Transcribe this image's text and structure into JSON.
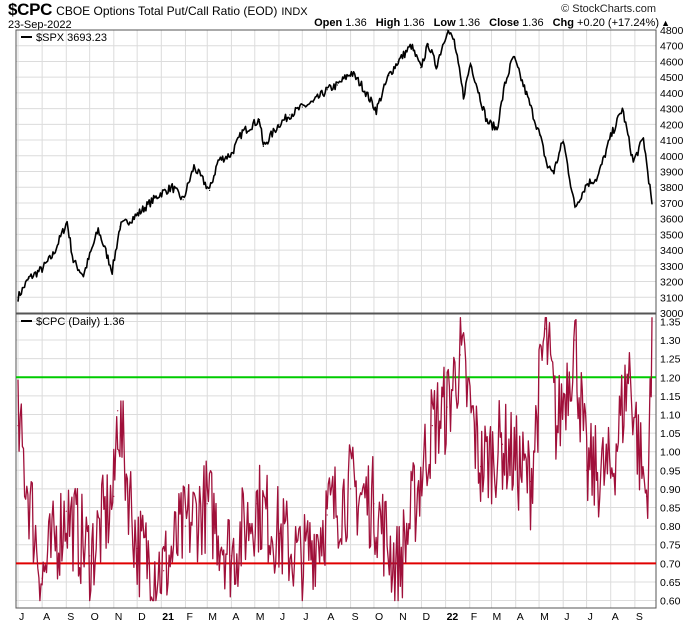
{
  "header": {
    "symbol": "$CPC",
    "name": "CBOE Options Total Put/Call Ratio (EOD)",
    "exchange": "INDX",
    "date": "23-Sep-2022",
    "brand": "© StockCharts.com",
    "open_label": "Open",
    "open": "1.36",
    "high_label": "High",
    "high": "1.36",
    "low_label": "Low",
    "low": "1.36",
    "close_label": "Close",
    "close": "1.36",
    "chg_label": "Chg",
    "chg": "+0.20 (+17.24%)",
    "chg_icon": "triangle-up-icon"
  },
  "chart_data": [
    {
      "type": "line",
      "legend": "$SPX 3693.23",
      "color": "#000000",
      "ylim": [
        3000,
        4800
      ],
      "yticks": [
        3000,
        3100,
        3200,
        3300,
        3400,
        3500,
        3600,
        3700,
        3800,
        3900,
        4000,
        4100,
        4200,
        4300,
        4400,
        4500,
        4600,
        4700,
        4800
      ],
      "x_range": [
        "2020-07-01",
        "2022-09-23"
      ],
      "x": [
        "2020-07-01",
        "2020-07-15",
        "2020-08-01",
        "2020-08-15",
        "2020-09-02",
        "2020-09-10",
        "2020-09-23",
        "2020-10-12",
        "2020-10-30",
        "2020-11-09",
        "2020-11-30",
        "2020-12-15",
        "2020-12-31",
        "2021-01-15",
        "2021-01-29",
        "2021-02-12",
        "2021-03-04",
        "2021-03-15",
        "2021-04-01",
        "2021-04-15",
        "2021-05-07",
        "2021-05-12",
        "2021-06-01",
        "2021-06-15",
        "2021-07-01",
        "2021-07-15",
        "2021-08-02",
        "2021-08-15",
        "2021-09-02",
        "2021-09-15",
        "2021-10-04",
        "2021-10-20",
        "2021-11-01",
        "2021-11-18",
        "2021-11-30",
        "2021-12-10",
        "2021-12-20",
        "2022-01-03",
        "2022-01-12",
        "2022-01-24",
        "2022-02-02",
        "2022-02-23",
        "2022-03-08",
        "2022-03-18",
        "2022-03-29",
        "2022-04-15",
        "2022-05-02",
        "2022-05-12",
        "2022-05-20",
        "2022-06-01",
        "2022-06-16",
        "2022-07-01",
        "2022-07-15",
        "2022-08-01",
        "2022-08-16",
        "2022-08-30",
        "2022-09-12",
        "2022-09-23"
      ],
      "values": [
        3100,
        3220,
        3280,
        3370,
        3580,
        3330,
        3240,
        3530,
        3270,
        3550,
        3620,
        3690,
        3760,
        3800,
        3720,
        3930,
        3780,
        3970,
        4010,
        4150,
        4230,
        4060,
        4200,
        4260,
        4310,
        4340,
        4420,
        4450,
        4530,
        4450,
        4290,
        4510,
        4600,
        4700,
        4560,
        4710,
        4570,
        4800,
        4730,
        4380,
        4590,
        4220,
        4170,
        4450,
        4630,
        4390,
        4130,
        3930,
        3900,
        4100,
        3670,
        3820,
        3860,
        4120,
        4300,
        3960,
        4110,
        3693
      ]
    },
    {
      "type": "line",
      "legend": "$CPC (Daily) 1.36",
      "color": "#a0103a",
      "ylim": [
        0.58,
        1.37
      ],
      "yticks": [
        0.6,
        0.65,
        0.7,
        0.75,
        0.8,
        0.85,
        0.9,
        0.95,
        1.0,
        1.05,
        1.1,
        1.15,
        1.2,
        1.25,
        1.3,
        1.35
      ],
      "x_range": [
        "2020-07-01",
        "2022-09-23"
      ],
      "reference_lines": [
        {
          "value": 1.2,
          "color": "#00cc00"
        },
        {
          "value": 0.7,
          "color": "#e00000"
        }
      ],
      "x": [
        "2020-07-01",
        "2020-08-01",
        "2020-09-01",
        "2020-10-01",
        "2020-11-01",
        "2020-11-06",
        "2020-12-01",
        "2021-01-04",
        "2021-02-01",
        "2021-03-01",
        "2021-04-01",
        "2021-05-03",
        "2021-06-01",
        "2021-07-01",
        "2021-08-02",
        "2021-09-01",
        "2021-10-01",
        "2021-11-01",
        "2021-11-26",
        "2021-12-15",
        "2022-01-03",
        "2022-01-20",
        "2022-02-15",
        "2022-03-15",
        "2022-04-20",
        "2022-05-09",
        "2022-05-24",
        "2022-06-16",
        "2022-07-01",
        "2022-08-01",
        "2022-08-25",
        "2022-09-07",
        "2022-09-16",
        "2022-09-22",
        "2022-09-23"
      ],
      "values": [
        1.07,
        0.66,
        0.84,
        0.72,
        0.88,
        1.11,
        0.74,
        0.68,
        0.8,
        0.86,
        0.72,
        0.86,
        0.78,
        0.7,
        0.83,
        0.9,
        0.86,
        0.68,
        0.9,
        1.07,
        1.12,
        1.26,
        0.96,
        1.02,
        0.92,
        1.33,
        1.06,
        1.3,
        0.95,
        0.94,
        1.22,
        0.99,
        0.88,
        1.16,
        1.36
      ],
      "min": 0.6,
      "max": 1.36
    }
  ],
  "x_axis": {
    "months": [
      "J",
      "A",
      "S",
      "O",
      "N",
      "D",
      "21",
      "F",
      "M",
      "A",
      "M",
      "J",
      "J",
      "A",
      "S",
      "O",
      "N",
      "D",
      "22",
      "F",
      "M",
      "A",
      "M",
      "J",
      "J",
      "A",
      "S"
    ],
    "month_dates": [
      "2020-07-01",
      "2020-08-01",
      "2020-09-01",
      "2020-10-01",
      "2020-11-01",
      "2020-12-01",
      "2021-01-01",
      "2021-02-01",
      "2021-03-01",
      "2021-04-01",
      "2021-05-01",
      "2021-06-01",
      "2021-07-01",
      "2021-08-01",
      "2021-09-01",
      "2021-10-01",
      "2021-11-01",
      "2021-12-01",
      "2022-01-01",
      "2022-02-01",
      "2022-03-01",
      "2022-04-01",
      "2022-05-01",
      "2022-06-01",
      "2022-07-01",
      "2022-08-01",
      "2022-09-01"
    ],
    "bold_labels": [
      "21",
      "22"
    ]
  }
}
